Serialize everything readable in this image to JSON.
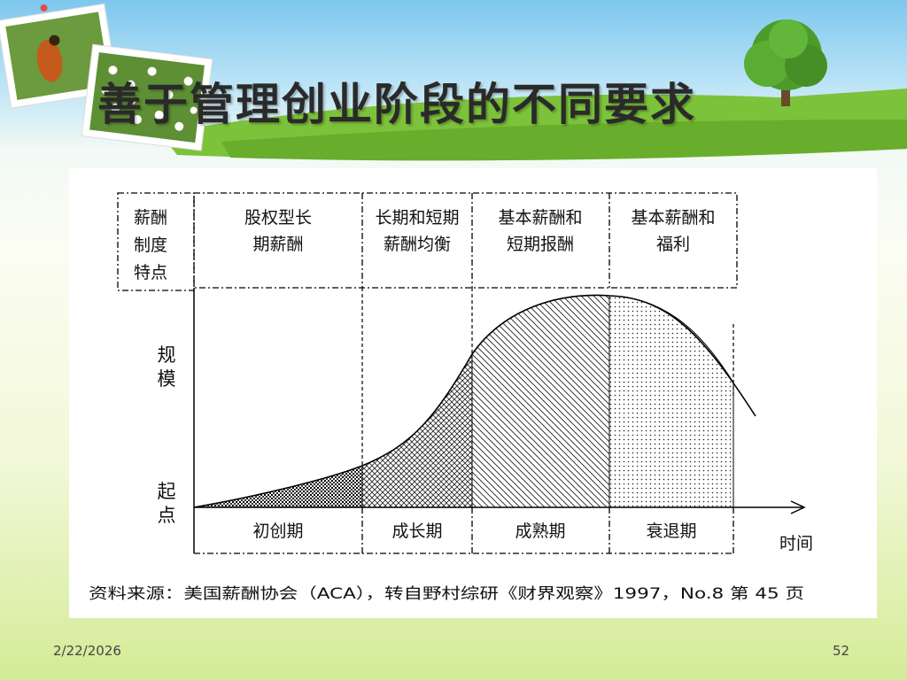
{
  "slide": {
    "title": "善于管理创业阶段的不同要求",
    "date": "2/22/2026",
    "page_number": "52"
  },
  "diagram": {
    "header_label": [
      "薪酬",
      "制度",
      "特点"
    ],
    "stage_features": [
      [
        "股权型长",
        "期薪酬"
      ],
      [
        "长期和短期",
        "薪酬均衡"
      ],
      [
        "基本薪酬和",
        "短期报酬"
      ],
      [
        "基本薪酬和",
        "福利"
      ]
    ],
    "y_axis_label_top": [
      "规",
      "模"
    ],
    "y_axis_label_bottom": [
      "起",
      "点"
    ],
    "stage_names": [
      "初创期",
      "成长期",
      "成熟期",
      "衰退期"
    ],
    "x_axis_label": "时间",
    "source_note": "资料来源：美国薪酬协会（ACA），转自野村综研《财界观察》1997，No.8 第 45 页"
  }
}
